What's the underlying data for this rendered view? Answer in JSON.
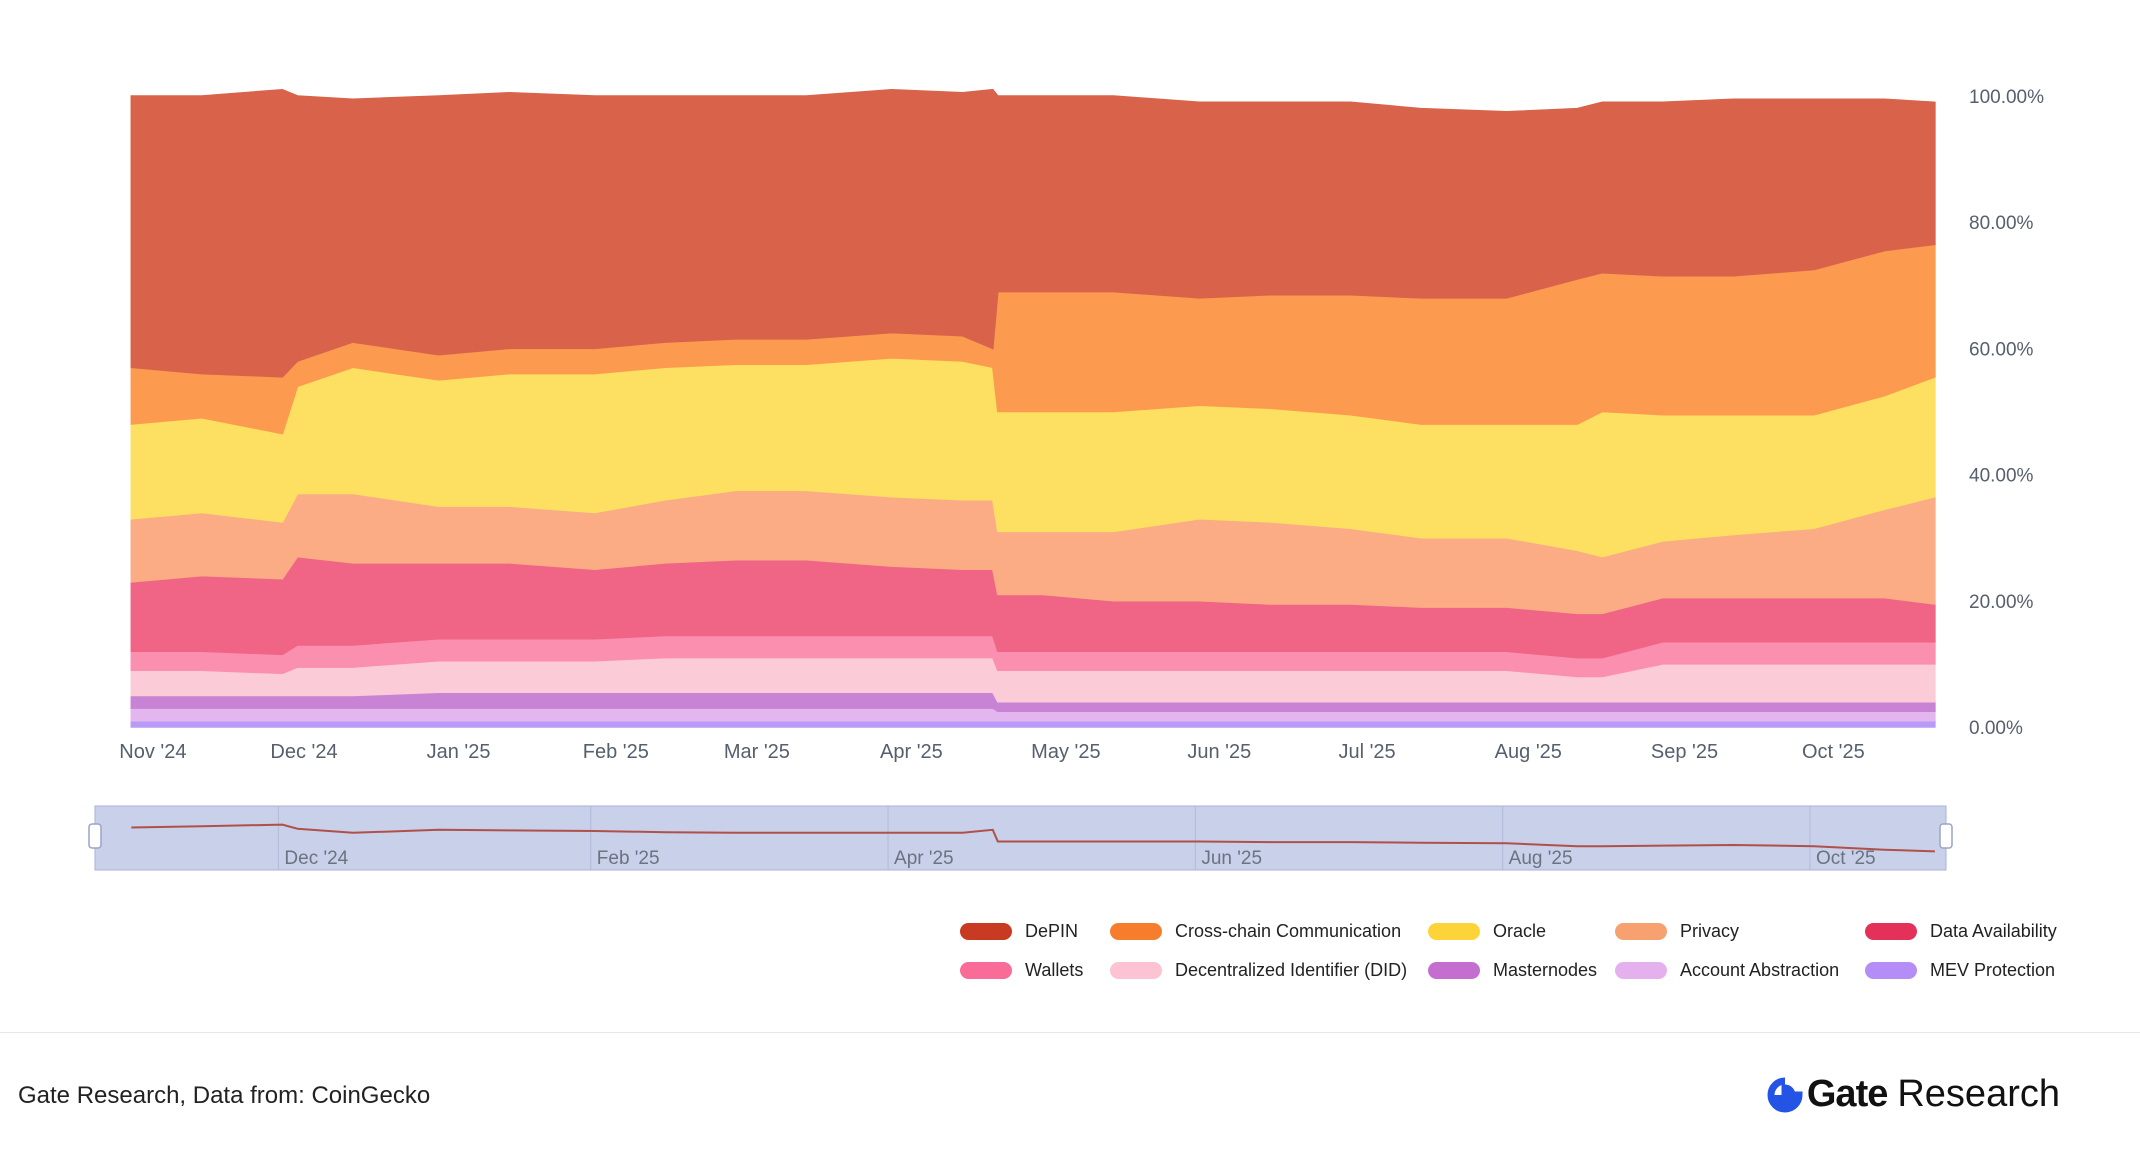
{
  "chart_data": {
    "type": "area",
    "stacking": "percent",
    "x_tick_labels": [
      "Nov '24",
      "Dec '24",
      "Jan '25",
      "Feb '25",
      "Mar '25",
      "Apr '25",
      "May '25",
      "Jun '25",
      "Jul '25",
      "Aug '25",
      "Sep '25",
      "Oct '25"
    ],
    "y_tick_labels": [
      "0.00%",
      "20.00%",
      "40.00%",
      "60.00%",
      "80.00%",
      "100.00%"
    ],
    "ylim": [
      0,
      100
    ],
    "legend_position": "bottom-right",
    "x": [
      "2024-11-01",
      "2024-11-15",
      "2024-12-01",
      "2024-12-04",
      "2024-12-15",
      "2025-01-01",
      "2025-01-15",
      "2025-02-01",
      "2025-02-15",
      "2025-03-01",
      "2025-03-15",
      "2025-04-01",
      "2025-04-15",
      "2025-04-21",
      "2025-04-22",
      "2025-05-01",
      "2025-05-15",
      "2025-06-01",
      "2025-06-15",
      "2025-07-01",
      "2025-07-15",
      "2025-08-01",
      "2025-08-15",
      "2025-08-20",
      "2025-09-01",
      "2025-09-15",
      "2025-10-01",
      "2025-10-15",
      "2025-10-25"
    ],
    "series": [
      {
        "name": "MEV Protection",
        "color": "#b99af5",
        "values": [
          1,
          1,
          1,
          1,
          1,
          1,
          1,
          1,
          1,
          1,
          1,
          1,
          1,
          1,
          1,
          1,
          1,
          1,
          1,
          1,
          1,
          1,
          1,
          1,
          1,
          1,
          1,
          1,
          1
        ]
      },
      {
        "name": "Account Abstraction",
        "color": "#e4b6f0",
        "values": [
          2,
          2,
          2,
          2,
          2,
          2,
          2,
          2,
          2,
          2,
          2,
          2,
          2,
          2,
          1.5,
          1.5,
          1.5,
          1.5,
          1.5,
          1.5,
          1.5,
          1.5,
          1.5,
          1.5,
          1.5,
          1.5,
          1.5,
          1.5,
          1.5
        ]
      },
      {
        "name": "Masternodes",
        "color": "#c883d4",
        "values": [
          2,
          2,
          2,
          2,
          2,
          2.5,
          2.5,
          2.5,
          2.5,
          2.5,
          2.5,
          2.5,
          2.5,
          2.5,
          1.5,
          1.5,
          1.5,
          1.5,
          1.5,
          1.5,
          1.5,
          1.5,
          1.5,
          1.5,
          1.5,
          1.5,
          1.5,
          1.5,
          1.5
        ]
      },
      {
        "name": "Decentralized Identifier (DID)",
        "color": "#fccbd8",
        "values": [
          4,
          4,
          3.5,
          4.5,
          4.5,
          5,
          5,
          5,
          5.5,
          5.5,
          5.5,
          5.5,
          5.5,
          5.5,
          5,
          5,
          5,
          5,
          5,
          5,
          5,
          5,
          4,
          4,
          6,
          6,
          6,
          6,
          6
        ]
      },
      {
        "name": "Wallets",
        "color": "#fa8fb0",
        "values": [
          3,
          3,
          3,
          3.5,
          3.5,
          3.5,
          3.5,
          3.5,
          3.5,
          3.5,
          3.5,
          3.5,
          3.5,
          3.5,
          3,
          3,
          3,
          3,
          3,
          3,
          3,
          3,
          3,
          3,
          3.5,
          3.5,
          3.5,
          3.5,
          3.5
        ]
      },
      {
        "name": "Data Availability",
        "color": "#f06485",
        "values": [
          11,
          12,
          12,
          14,
          13,
          12,
          12,
          11,
          11.5,
          12,
          12,
          11,
          10.5,
          10.5,
          9,
          9,
          8,
          8,
          7.5,
          7.5,
          7,
          7,
          7,
          7,
          7,
          7,
          7,
          7,
          6
        ]
      },
      {
        "name": "Privacy",
        "color": "#fbac84",
        "values": [
          10,
          10,
          9,
          10,
          11,
          9,
          9,
          9,
          10,
          11,
          11,
          11,
          11,
          11,
          10,
          10,
          11,
          13,
          13,
          12,
          11,
          11,
          10,
          9,
          9,
          10,
          11,
          14,
          17
        ]
      },
      {
        "name": "Oracle",
        "color": "#fde062",
        "values": [
          15,
          15,
          14,
          17,
          20,
          20,
          21,
          22,
          21,
          20,
          20,
          22,
          22,
          21,
          19,
          19,
          19,
          18,
          18,
          18,
          18,
          18,
          20,
          23,
          20,
          19,
          18,
          18,
          19
        ]
      },
      {
        "name": "Cross-chain Communication",
        "color": "#fc9b4f",
        "values": [
          9,
          7,
          9,
          4,
          4,
          4,
          4,
          4,
          4,
          4,
          4,
          4,
          4,
          3,
          19,
          19,
          19,
          17,
          18,
          19,
          20,
          20,
          23,
          22,
          22,
          22,
          23,
          23,
          21
        ]
      },
      {
        "name": "DePIN",
        "color": "#d9624a",
        "values": [
          43,
          44,
          45.5,
          42,
          38.5,
          41,
          40.5,
          40,
          39,
          38.5,
          38.5,
          38.5,
          38.5,
          41,
          31,
          31,
          31,
          31,
          30.5,
          30.5,
          30,
          29.5,
          27,
          27,
          27.5,
          28,
          27,
          24,
          22.5
        ]
      }
    ],
    "navigator": {
      "x_tick_labels": [
        "Dec '24",
        "Feb '25",
        "Apr '25",
        "Jun '25",
        "Aug '25",
        "Oct '25"
      ]
    }
  },
  "legend": [
    {
      "label": "DePIN",
      "color": "#c83a22"
    },
    {
      "label": "Cross-chain Communication",
      "color": "#f67d2c"
    },
    {
      "label": "Oracle",
      "color": "#fcd43a"
    },
    {
      "label": "Privacy",
      "color": "#f8a170"
    },
    {
      "label": "Data Availability",
      "color": "#e4315a"
    },
    {
      "label": "Wallets",
      "color": "#f96c97"
    },
    {
      "label": "Decentralized Identifier (DID)",
      "color": "#fcc3d2"
    },
    {
      "label": "Masternodes",
      "color": "#c46fcf"
    },
    {
      "label": "Account Abstraction",
      "color": "#e4b1ee"
    },
    {
      "label": "MEV Protection",
      "color": "#b48ef6"
    }
  ],
  "footer": {
    "source": "Gate Research, Data from:  CoinGecko",
    "brand_name": "Gate",
    "brand_suffix": "Research",
    "brand_icon": "gate-logo-icon",
    "brand_color": "#2354e6"
  }
}
